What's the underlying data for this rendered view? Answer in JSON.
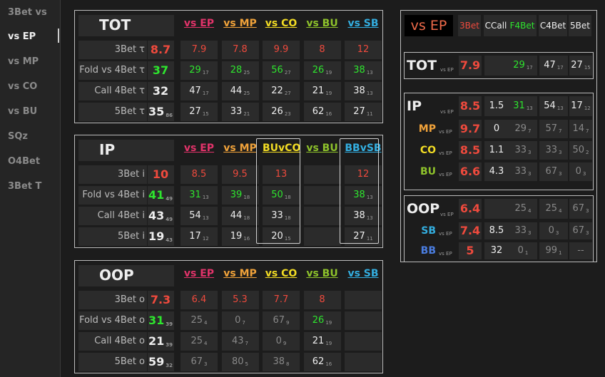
{
  "sidebar": {
    "items": [
      "3Bet vs",
      "vs EP",
      "vs MP",
      "vs CO",
      "vs BU",
      "SQz",
      "O4Bet",
      "3Bet T"
    ],
    "active_index": 1
  },
  "colors": {
    "ep": "#e2336a",
    "mp": "#f0a23a",
    "co": "#f2dc24",
    "bu": "#8ec22b",
    "sb": "#33aee0",
    "red": "#ef4a3d",
    "green": "#2ee52e",
    "white": "#eeeeee",
    "grey": "#888888"
  },
  "tables": [
    {
      "title": "TOT",
      "headers": [
        {
          "text": "vs EP",
          "color": "ep"
        },
        {
          "text": "vs MP",
          "color": "mp"
        },
        {
          "text": "vs CO",
          "color": "co"
        },
        {
          "text": "vs BU",
          "color": "bu"
        },
        {
          "text": "vs SB",
          "color": "sb"
        }
      ],
      "rows": [
        {
          "label": "3Bet τ",
          "main": {
            "v": "8.7",
            "c": "red"
          },
          "cells": [
            {
              "v": "7.9",
              "c": "red"
            },
            {
              "v": "7.8",
              "c": "red"
            },
            {
              "v": "9.9",
              "c": "red"
            },
            {
              "v": "8",
              "c": "red"
            },
            {
              "v": "12",
              "c": "red"
            }
          ]
        },
        {
          "label": "Fold vs 4Bet τ",
          "main": {
            "v": "37",
            "c": "green"
          },
          "cells": [
            {
              "v": "29",
              "s": "17",
              "c": "green"
            },
            {
              "v": "28",
              "s": "25",
              "c": "green"
            },
            {
              "v": "56",
              "s": "27",
              "c": "green"
            },
            {
              "v": "26",
              "s": "19",
              "c": "green"
            },
            {
              "v": "38",
              "s": "13",
              "c": "green"
            }
          ]
        },
        {
          "label": "Call 4Bet τ",
          "main": {
            "v": "32",
            "c": "white"
          },
          "cells": [
            {
              "v": "47",
              "s": "17",
              "c": "white"
            },
            {
              "v": "44",
              "s": "25",
              "c": "white"
            },
            {
              "v": "22",
              "s": "27",
              "c": "white"
            },
            {
              "v": "21",
              "s": "19",
              "c": "white"
            },
            {
              "v": "38",
              "s": "13",
              "c": "white"
            }
          ]
        },
        {
          "label": "5Bet τ",
          "main": {
            "v": "35",
            "s": "86",
            "c": "white"
          },
          "cells": [
            {
              "v": "27",
              "s": "15",
              "c": "white"
            },
            {
              "v": "33",
              "s": "21",
              "c": "white"
            },
            {
              "v": "26",
              "s": "23",
              "c": "white"
            },
            {
              "v": "62",
              "s": "16",
              "c": "white"
            },
            {
              "v": "27",
              "s": "11",
              "c": "white"
            }
          ]
        }
      ]
    },
    {
      "title": "IP",
      "headers": [
        {
          "text": "vs EP",
          "color": "ep"
        },
        {
          "text": "vs MP",
          "color": "mp"
        },
        {
          "text": "BUvCO",
          "color": "co"
        },
        {
          "text": "vs BU",
          "color": "bu"
        },
        {
          "text": "BBvSB",
          "color": "sb"
        }
      ],
      "rows": [
        {
          "label": "3Bet i",
          "main": {
            "v": "10",
            "c": "red"
          },
          "cells": [
            {
              "v": "8.5",
              "c": "red"
            },
            {
              "v": "9.5",
              "c": "red"
            },
            {
              "v": "13",
              "c": "red"
            },
            {
              "v": ""
            },
            {
              "v": "12",
              "c": "red"
            }
          ]
        },
        {
          "label": "Fold vs 4Bet i",
          "main": {
            "v": "41",
            "s": "49",
            "c": "green"
          },
          "cells": [
            {
              "v": "31",
              "s": "13",
              "c": "green"
            },
            {
              "v": "39",
              "s": "18",
              "c": "green"
            },
            {
              "v": "50",
              "s": "18",
              "c": "green"
            },
            {
              "v": ""
            },
            {
              "v": "38",
              "s": "13",
              "c": "green"
            }
          ]
        },
        {
          "label": "Call 4Bet i",
          "main": {
            "v": "43",
            "s": "49",
            "c": "white"
          },
          "cells": [
            {
              "v": "54",
              "s": "13",
              "c": "white"
            },
            {
              "v": "44",
              "s": "18",
              "c": "white"
            },
            {
              "v": "33",
              "s": "18",
              "c": "white"
            },
            {
              "v": ""
            },
            {
              "v": "38",
              "s": "13",
              "c": "white"
            }
          ]
        },
        {
          "label": "5Bet i",
          "main": {
            "v": "19",
            "s": "43",
            "c": "white"
          },
          "cells": [
            {
              "v": "17",
              "s": "12",
              "c": "white"
            },
            {
              "v": "19",
              "s": "16",
              "c": "white"
            },
            {
              "v": "20",
              "s": "15",
              "c": "white"
            },
            {
              "v": ""
            },
            {
              "v": "27",
              "s": "11",
              "c": "white"
            }
          ]
        }
      ]
    },
    {
      "title": "OOP",
      "headers": [
        {
          "text": "vs EP",
          "color": "ep"
        },
        {
          "text": "vs MP",
          "color": "mp"
        },
        {
          "text": "vs CO",
          "color": "co"
        },
        {
          "text": "vs BU",
          "color": "bu"
        },
        {
          "text": "vs SB",
          "color": "sb"
        }
      ],
      "rows": [
        {
          "label": "3Bet o",
          "main": {
            "v": "7.3",
            "c": "red"
          },
          "cells": [
            {
              "v": "6.4",
              "c": "red"
            },
            {
              "v": "5.3",
              "c": "red"
            },
            {
              "v": "7.7",
              "c": "red"
            },
            {
              "v": "8",
              "c": "red"
            },
            {
              "v": ""
            }
          ]
        },
        {
          "label": "Fold vs 4Bet o",
          "main": {
            "v": "31",
            "s": "39",
            "c": "green"
          },
          "cells": [
            {
              "v": "25",
              "s": "4",
              "c": "grey"
            },
            {
              "v": "0",
              "s": "7",
              "c": "grey"
            },
            {
              "v": "67",
              "s": "9",
              "c": "grey"
            },
            {
              "v": "26",
              "s": "19",
              "c": "green"
            },
            {
              "v": ""
            }
          ]
        },
        {
          "label": "Call 4Bet o",
          "main": {
            "v": "21",
            "s": "39",
            "c": "white"
          },
          "cells": [
            {
              "v": "25",
              "s": "4",
              "c": "grey"
            },
            {
              "v": "43",
              "s": "7",
              "c": "grey"
            },
            {
              "v": "0",
              "s": "9",
              "c": "grey"
            },
            {
              "v": "21",
              "s": "19",
              "c": "white"
            },
            {
              "v": ""
            }
          ]
        },
        {
          "label": "5Bet o",
          "main": {
            "v": "59",
            "s": "32",
            "c": "white"
          },
          "cells": [
            {
              "v": "67",
              "s": "3",
              "c": "grey"
            },
            {
              "v": "80",
              "s": "5",
              "c": "grey"
            },
            {
              "v": "38",
              "s": "8",
              "c": "grey"
            },
            {
              "v": "62",
              "s": "16",
              "c": "white"
            },
            {
              "v": ""
            }
          ]
        }
      ]
    }
  ],
  "right": {
    "title": "vs EP",
    "col_headers": [
      {
        "text": "3Bet",
        "c": "red"
      },
      {
        "text": "CCall",
        "c": "white"
      },
      {
        "text": "F4Bet",
        "c": "green"
      },
      {
        "text": "C4Bet",
        "c": "white"
      },
      {
        "text": "5Bet",
        "c": "white"
      }
    ],
    "tot": {
      "label": "TOT",
      "sub": "vs EP",
      "cells": [
        {
          "v": "7.9",
          "c": "red"
        },
        {
          "v": ""
        },
        {
          "v": "29",
          "s": "17",
          "c": "green"
        },
        {
          "v": "47",
          "s": "17",
          "c": "white"
        },
        {
          "v": "27",
          "s": "15",
          "c": "white"
        }
      ]
    },
    "ip": {
      "label": "IP",
      "sub": "vs EP",
      "cells": [
        {
          "v": "8.5",
          "c": "red"
        },
        {
          "v": "1.5",
          "c": "white"
        },
        {
          "v": "31",
          "s": "13",
          "c": "green"
        },
        {
          "v": "54",
          "s": "13",
          "c": "white"
        },
        {
          "v": "17",
          "s": "12",
          "c": "white"
        }
      ],
      "rows": [
        {
          "pos": "MP",
          "pc": "mp",
          "sub": "vs EP",
          "cells": [
            {
              "v": "9.7",
              "c": "red"
            },
            {
              "v": "0",
              "c": "white"
            },
            {
              "v": "29",
              "s": "7",
              "c": "grey"
            },
            {
              "v": "57",
              "s": "7",
              "c": "grey"
            },
            {
              "v": "14",
              "s": "7",
              "c": "grey"
            }
          ]
        },
        {
          "pos": "CO",
          "pc": "co",
          "sub": "vs EP",
          "cells": [
            {
              "v": "8.5",
              "c": "red"
            },
            {
              "v": "1.1",
              "c": "white"
            },
            {
              "v": "33",
              "s": "3",
              "c": "grey"
            },
            {
              "v": "33",
              "s": "3",
              "c": "grey"
            },
            {
              "v": "50",
              "s": "2",
              "c": "grey"
            }
          ]
        },
        {
          "pos": "BU",
          "pc": "bu",
          "sub": "vs EP",
          "cells": [
            {
              "v": "6.6",
              "c": "red"
            },
            {
              "v": "4.3",
              "c": "white"
            },
            {
              "v": "33",
              "s": "3",
              "c": "grey"
            },
            {
              "v": "67",
              "s": "3",
              "c": "grey"
            },
            {
              "v": "0",
              "s": "3",
              "c": "grey"
            }
          ]
        }
      ]
    },
    "oop": {
      "label": "OOP",
      "sub": "vs EP",
      "cells": [
        {
          "v": "6.4",
          "c": "red"
        },
        {
          "v": ""
        },
        {
          "v": "25",
          "s": "4",
          "c": "grey"
        },
        {
          "v": "25",
          "s": "4",
          "c": "grey"
        },
        {
          "v": "67",
          "s": "3",
          "c": "grey"
        }
      ],
      "rows": [
        {
          "pos": "SB",
          "pc": "sb",
          "sub": "vs EP",
          "cells": [
            {
              "v": "7.4",
              "c": "red"
            },
            {
              "v": "8.5",
              "c": "white"
            },
            {
              "v": "33",
              "s": "3",
              "c": "grey"
            },
            {
              "v": "0",
              "s": "3",
              "c": "grey"
            },
            {
              "v": "67",
              "s": "3",
              "c": "grey"
            }
          ]
        },
        {
          "pos": "BB",
          "pc": "bb",
          "sub": "vs EP",
          "cells": [
            {
              "v": "5",
              "c": "red"
            },
            {
              "v": "32",
              "c": "white"
            },
            {
              "v": "0",
              "s": "1",
              "c": "grey"
            },
            {
              "v": "99",
              "s": "1",
              "c": "grey"
            },
            {
              "v": "--",
              "c": "grey"
            }
          ]
        }
      ]
    }
  }
}
